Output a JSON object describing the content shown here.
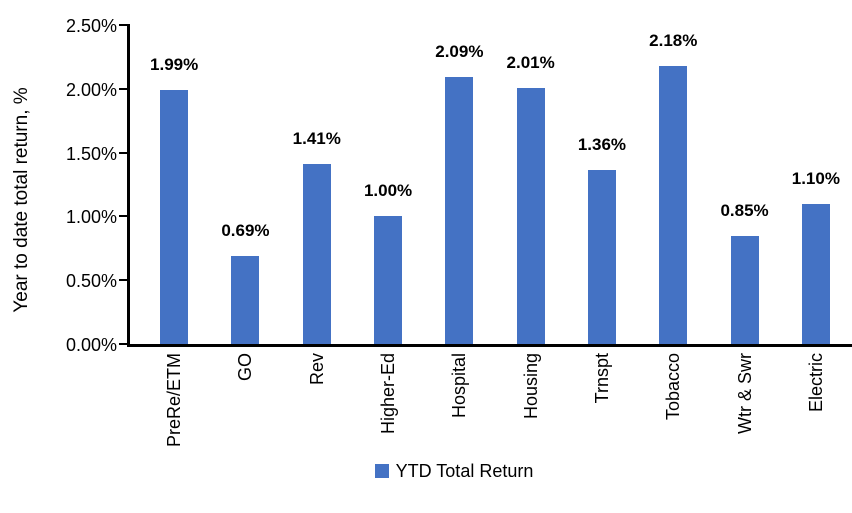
{
  "chart_data": {
    "type": "bar",
    "title": "",
    "series_name": "YTD Total Return",
    "categories": [
      "PreRe/ETM",
      "GO",
      "Rev",
      "Higher-Ed",
      "Hospital",
      "Housing",
      "Trnspt",
      "Tobacco",
      "Wtr & Swr",
      "Electric"
    ],
    "values": [
      1.99,
      0.69,
      1.41,
      1.0,
      2.09,
      2.01,
      1.36,
      2.18,
      0.85,
      1.1
    ],
    "value_labels": [
      "1.99%",
      "0.69%",
      "1.41%",
      "1.00%",
      "2.09%",
      "2.01%",
      "1.36%",
      "2.18%",
      "0.85%",
      "1.10%"
    ],
    "xlabel": "",
    "ylabel": "Year to date total return, %",
    "ylim": [
      0,
      2.5
    ],
    "yticks": [
      0,
      0.5,
      1.0,
      1.5,
      2.0,
      2.5
    ],
    "ytick_labels": [
      "0.00%",
      "0.50%",
      "1.00%",
      "1.50%",
      "2.00%",
      "2.50%"
    ],
    "grid": false,
    "legend_position": "bottom-center",
    "bar_color": "#4472C4",
    "axis_color": "#000000",
    "text_color": "#000000"
  },
  "legend": {
    "swatch_color": "#4472C4",
    "label": "YTD Total Return"
  }
}
